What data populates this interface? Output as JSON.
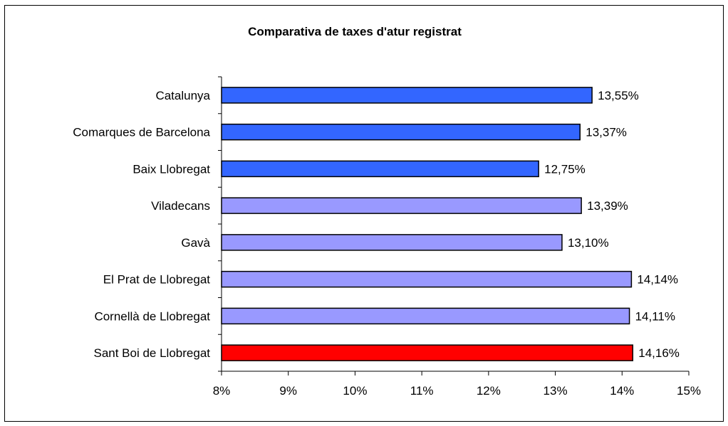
{
  "chart_data": {
    "type": "bar",
    "orientation": "horizontal",
    "title": "Comparativa de taxes d'atur registrat",
    "xlabel": "",
    "ylabel": "",
    "xlim": [
      8,
      15
    ],
    "tick_values": [
      8,
      9,
      10,
      11,
      12,
      13,
      14,
      15
    ],
    "tick_labels": [
      "8%",
      "9%",
      "10%",
      "11%",
      "12%",
      "13%",
      "14%",
      "15%"
    ],
    "categories": [
      "Catalunya",
      "Comarques de Barcelona",
      "Baix Llobregat",
      "Viladecans",
      "Gavà",
      "El Prat de Llobregat",
      "Cornellà de Llobregat",
      "Sant Boi de Llobregat"
    ],
    "values": [
      13.55,
      13.37,
      12.75,
      13.39,
      13.1,
      14.14,
      14.11,
      14.16
    ],
    "value_labels": [
      "13,55%",
      "13,37%",
      "12,75%",
      "13,39%",
      "13,10%",
      "14,14%",
      "14,11%",
      "14,16%"
    ],
    "bar_colors": [
      "#3366ff",
      "#3366ff",
      "#3366ff",
      "#9999ff",
      "#9999ff",
      "#9999ff",
      "#9999ff",
      "#ff0000"
    ],
    "grid": false,
    "legend": "none"
  }
}
